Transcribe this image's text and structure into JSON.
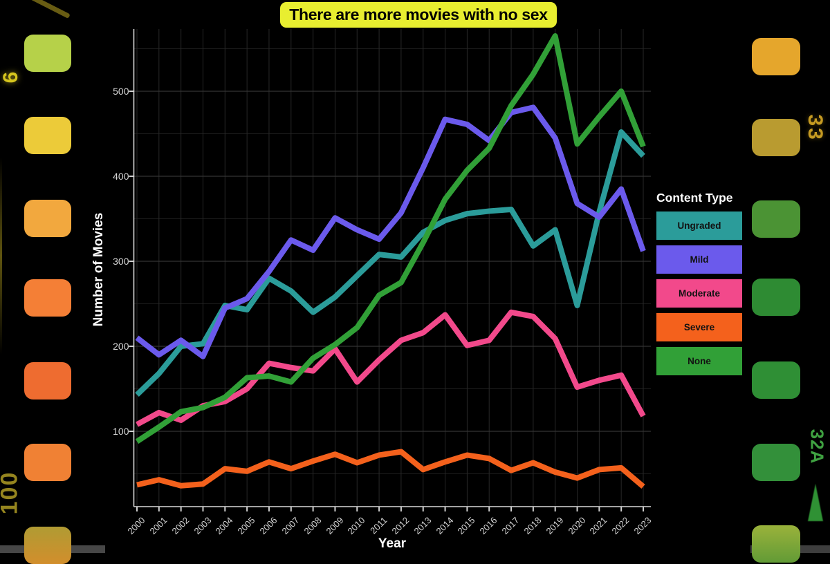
{
  "title_banner": {
    "text": "There are more movies with no sex",
    "bg_color": "#e8ee30",
    "text_color": "#000000"
  },
  "legend": {
    "title": "Content Type",
    "items": [
      {
        "label": "Ungraded",
        "color": "#2b9c9a"
      },
      {
        "label": "Mild",
        "color": "#6b5aec"
      },
      {
        "label": "Moderate",
        "color": "#f2498b"
      },
      {
        "label": "Severe",
        "color": "#f4611c"
      },
      {
        "label": "None",
        "color": "#31a037"
      }
    ]
  },
  "chart_data": {
    "type": "line",
    "title": "There are more movies with no sex",
    "xlabel": "Year",
    "ylabel": "Number of Movies",
    "x": [
      2000,
      2001,
      2002,
      2003,
      2004,
      2005,
      2006,
      2007,
      2008,
      2009,
      2010,
      2011,
      2012,
      2013,
      2014,
      2015,
      2016,
      2017,
      2018,
      2019,
      2020,
      2021,
      2022,
      2023
    ],
    "yticks": [
      100,
      200,
      300,
      400,
      500
    ],
    "minor_yticks": [
      50,
      150,
      250,
      350,
      450,
      550
    ],
    "ylim": [
      11,
      571
    ],
    "grid": true,
    "legend_position": "right",
    "series": [
      {
        "name": "Ungraded",
        "color": "#2b9c9a",
        "values": [
          143,
          168,
          200,
          203,
          248,
          243,
          280,
          265,
          240,
          258,
          283,
          308,
          305,
          334,
          348,
          356,
          359,
          361,
          318,
          337,
          248,
          358,
          452,
          424
        ]
      },
      {
        "name": "Mild",
        "color": "#6b5aec",
        "values": [
          210,
          190,
          207,
          188,
          245,
          256,
          288,
          325,
          313,
          351,
          337,
          326,
          357,
          410,
          467,
          461,
          442,
          475,
          481,
          445,
          368,
          352,
          385,
          312
        ]
      },
      {
        "name": "Moderate",
        "color": "#f2498b",
        "values": [
          108,
          122,
          113,
          130,
          135,
          150,
          180,
          175,
          171,
          197,
          158,
          184,
          207,
          216,
          237,
          201,
          207,
          240,
          235,
          209,
          152,
          160,
          166,
          118
        ]
      },
      {
        "name": "Severe",
        "color": "#f4611c",
        "values": [
          37,
          43,
          36,
          38,
          56,
          53,
          64,
          56,
          65,
          73,
          63,
          72,
          76,
          55,
          64,
          72,
          68,
          54,
          63,
          52,
          45,
          55,
          57,
          35
        ]
      },
      {
        "name": "None",
        "color": "#31a037",
        "values": [
          88,
          105,
          123,
          128,
          140,
          163,
          165,
          158,
          186,
          202,
          222,
          260,
          275,
          322,
          373,
          407,
          433,
          483,
          520,
          565,
          438,
          470,
          500,
          435
        ]
      }
    ]
  },
  "film_strip": {
    "left_frame_number": "6",
    "left_film_speed": "100",
    "right_frame_number": "33",
    "right_frame_code": "32A",
    "left_holes": [
      {
        "color": "#b6d149"
      },
      {
        "color": "#eccb39"
      },
      {
        "color": "#f2a83e"
      },
      {
        "color": "#f47f36"
      },
      {
        "color": "#ee6c30"
      },
      {
        "color": "#f08134"
      },
      {
        "color": "#b09b33",
        "color2": "#d28e2c"
      }
    ],
    "right_holes": [
      {
        "color": "#e5a62c"
      },
      {
        "color": "#b99b30"
      },
      {
        "color": "#4b9334"
      },
      {
        "color": "#2e8b33"
      },
      {
        "color": "#2f8f35"
      },
      {
        "color": "#33903a"
      },
      {
        "color": "#9ab23b",
        "color2": "#629b36"
      }
    ]
  }
}
